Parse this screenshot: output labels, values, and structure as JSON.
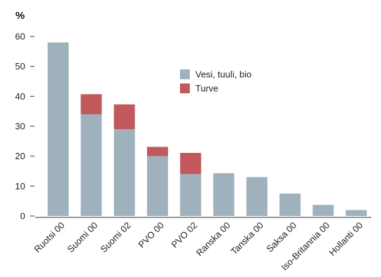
{
  "chart_data": {
    "type": "bar",
    "stacked": true,
    "ylabel": "%",
    "ylim": [
      0,
      60
    ],
    "yticks": [
      0,
      10,
      20,
      30,
      40,
      50,
      60
    ],
    "grid": false,
    "legend_position": "top-center",
    "categories": [
      "Ruotsi 00",
      "Suomi 00",
      "Suomi 02",
      "PVO 00",
      "PVO 02",
      "Ranska 00",
      "Tanska 00",
      "Saksa 00",
      "Iso-Britannia 00",
      "Hollanti 00"
    ],
    "series": [
      {
        "name": "Vesi, tuuli, bio",
        "color": "#9eb1bd",
        "values": [
          58,
          34,
          29,
          20,
          14,
          14.3,
          13,
          7.5,
          3.7,
          2
        ]
      },
      {
        "name": "Turve",
        "color": "#c0585c",
        "values": [
          0,
          6.7,
          8.3,
          3.1,
          7.1,
          0,
          0,
          0,
          0,
          0
        ]
      }
    ]
  }
}
